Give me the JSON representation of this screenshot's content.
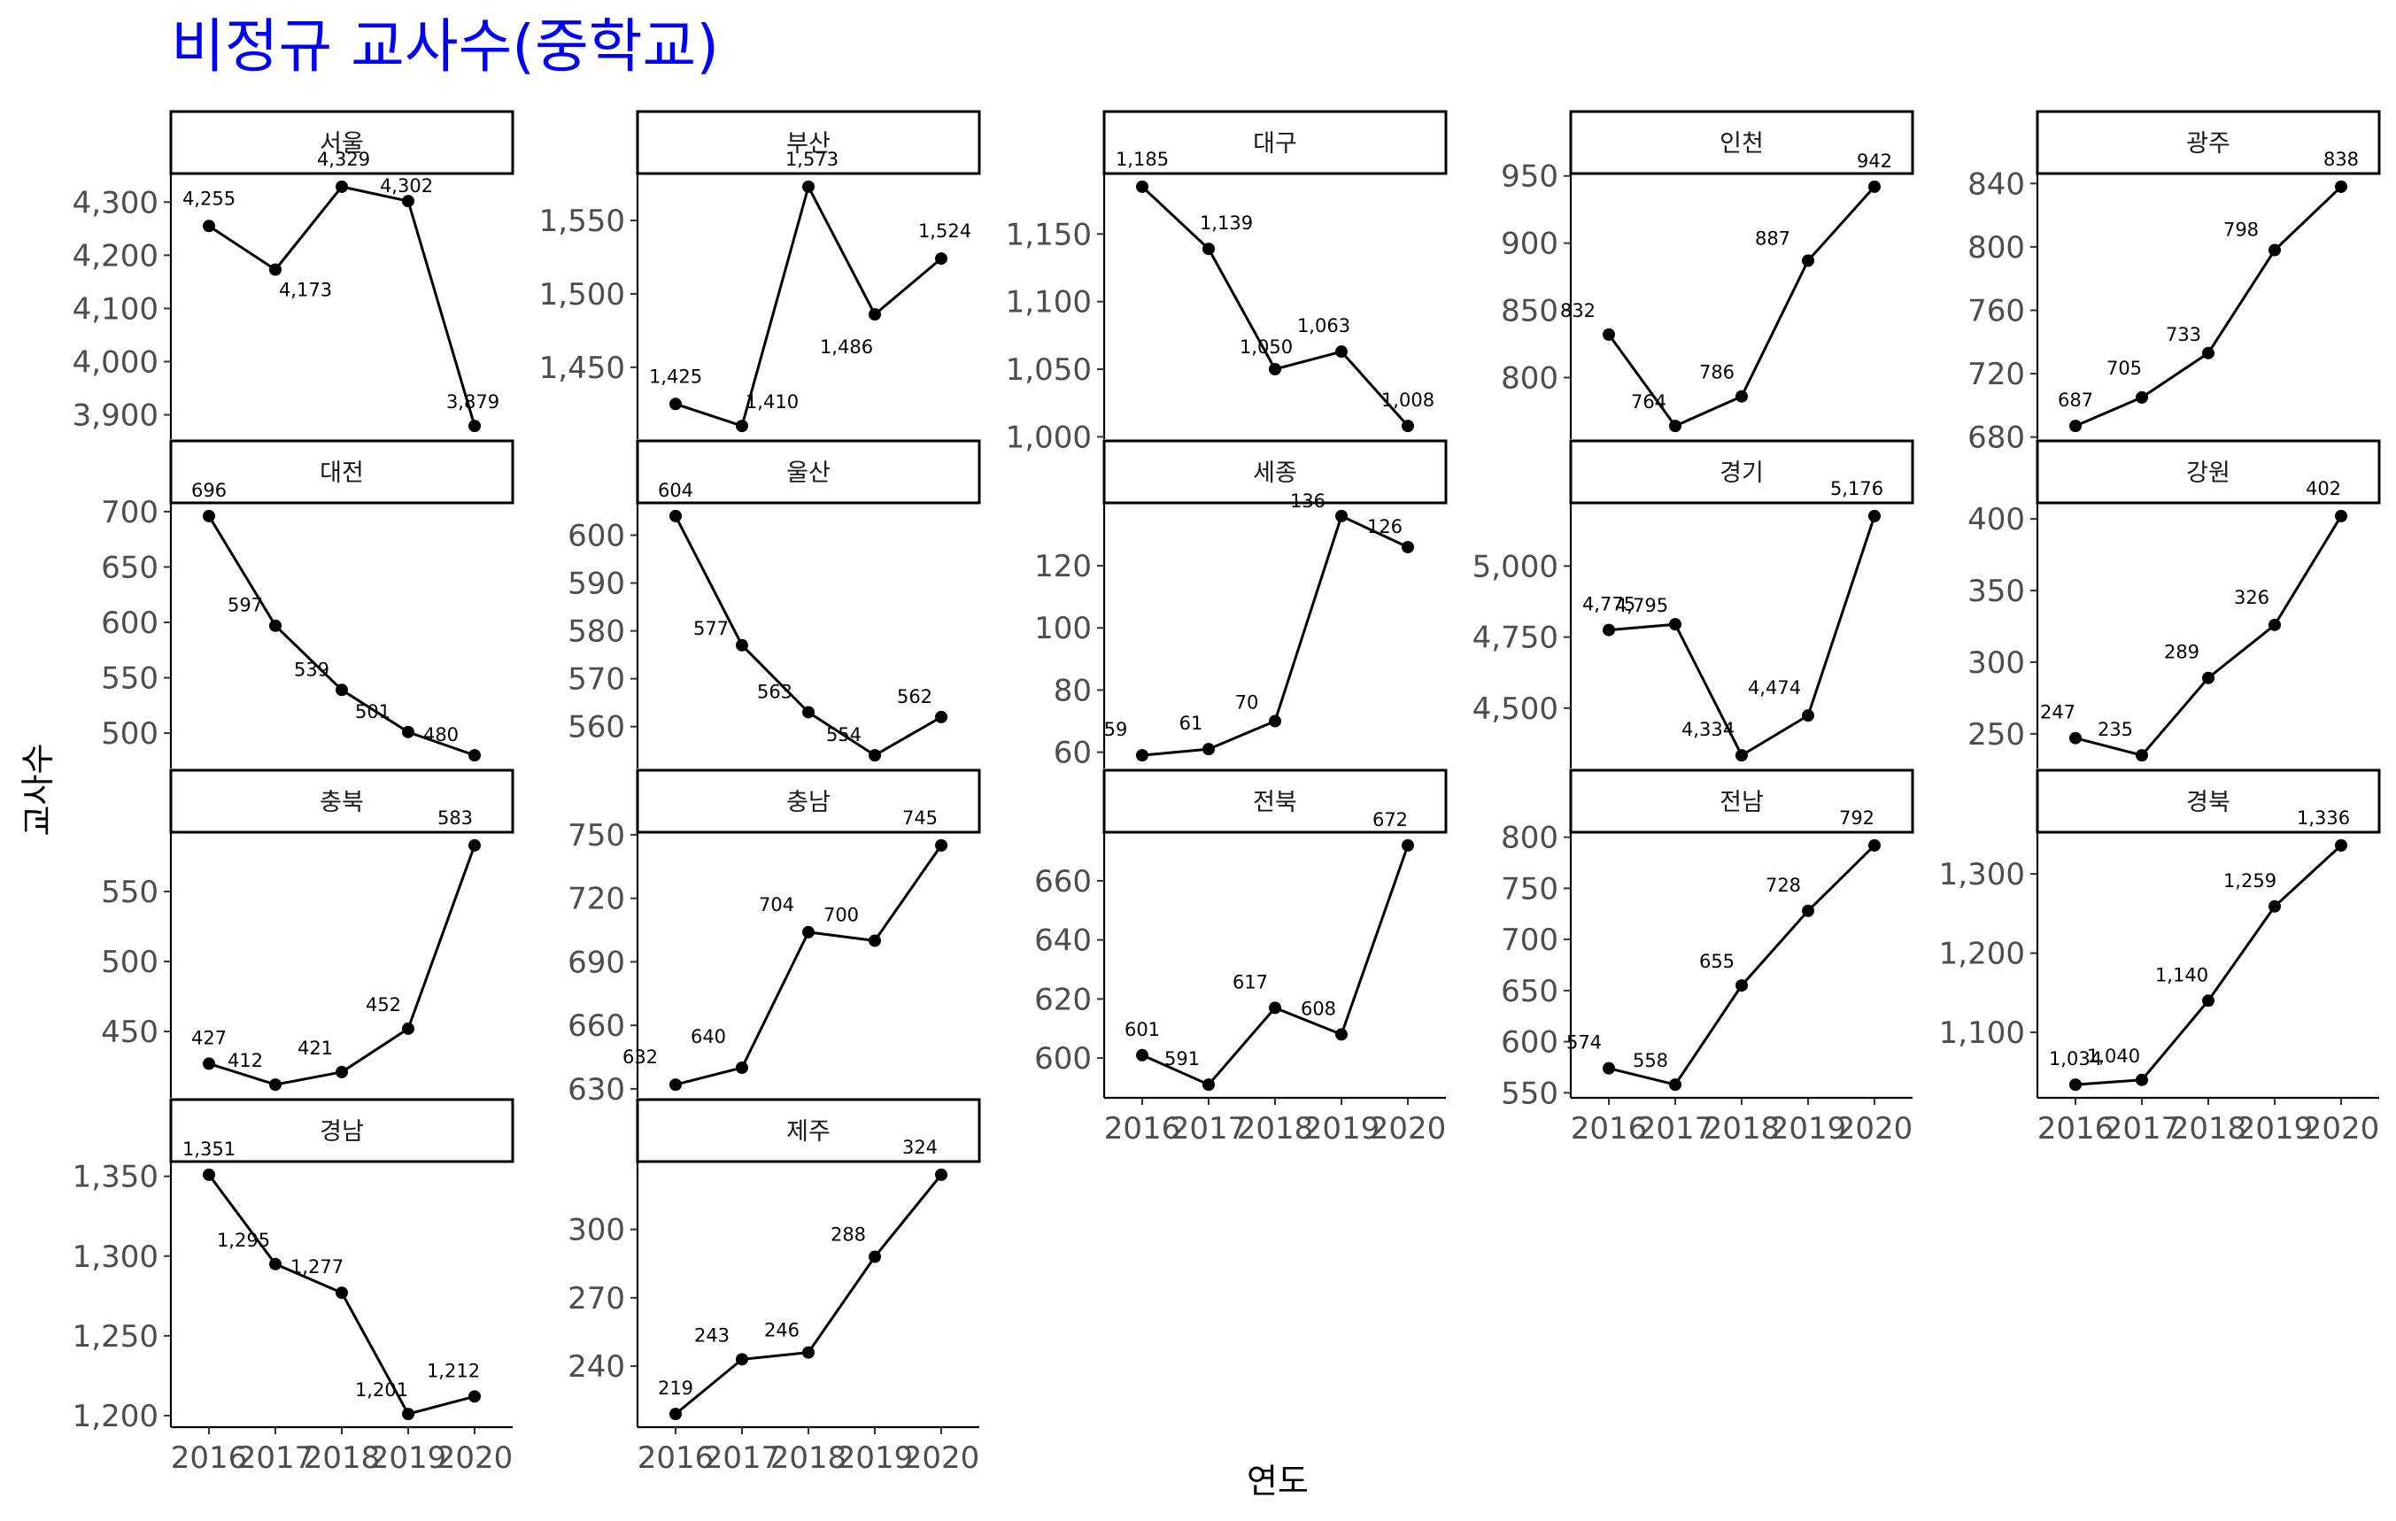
{
  "chart_data": {
    "type": "line",
    "title": "비정규 교사수(중학교)",
    "title_color": "#0000ff",
    "xlabel": "연도",
    "ylabel": "교사수",
    "x": [
      2016,
      2017,
      2018,
      2019,
      2020
    ],
    "facet_layout": "5 columns, free y scales",
    "grid": false,
    "line_color": "#000000",
    "facets": [
      {
        "name": "서울",
        "values": [
          4255,
          4173,
          4329,
          4302,
          3879
        ],
        "labels": [
          "4,255",
          "4,173",
          "4,329",
          "4,302",
          "3,879"
        ],
        "ylim": [
          3879,
          4329
        ],
        "yticks": [
          3900,
          4000,
          4100,
          4200,
          4300
        ],
        "ytick_labels": [
          "3,900",
          "4,000",
          "4,100",
          "4,200",
          "4,300"
        ],
        "show_x_labels": false
      },
      {
        "name": "부산",
        "values": [
          1425,
          1410,
          1573,
          1486,
          1524
        ],
        "labels": [
          "1,425",
          "1,410",
          "1,573",
          "1,486",
          "1,524"
        ],
        "ylim": [
          1410,
          1573
        ],
        "yticks": [
          1450,
          1500,
          1550
        ],
        "ytick_labels": [
          "1,450",
          "1,500",
          "1,550"
        ],
        "show_x_labels": false
      },
      {
        "name": "대구",
        "values": [
          1185,
          1139,
          1050,
          1063,
          1008
        ],
        "labels": [
          "1,185",
          "1,139",
          "1,050",
          "1,063",
          "1,008"
        ],
        "ylim": [
          1008,
          1185
        ],
        "yticks": [
          1000,
          1050,
          1100,
          1150
        ],
        "ytick_labels": [
          "1,000",
          "1,050",
          "1,100",
          "1,150"
        ],
        "show_x_labels": false
      },
      {
        "name": "인천",
        "values": [
          832,
          764,
          786,
          887,
          942
        ],
        "labels": [
          "832",
          "764",
          "786",
          "887",
          "942"
        ],
        "ylim": [
          764,
          942
        ],
        "yticks": [
          800,
          850,
          900,
          950
        ],
        "ytick_labels": [
          "800",
          "850",
          "900",
          "950"
        ],
        "show_x_labels": false
      },
      {
        "name": "광주",
        "values": [
          687,
          705,
          733,
          798,
          838
        ],
        "labels": [
          "687",
          "705",
          "733",
          "798",
          "838"
        ],
        "ylim": [
          687,
          838
        ],
        "yticks": [
          680,
          720,
          760,
          800,
          840
        ],
        "ytick_labels": [
          "680",
          "720",
          "760",
          "800",
          "840"
        ],
        "show_x_labels": false
      },
      {
        "name": "대전",
        "values": [
          696,
          597,
          539,
          501,
          480
        ],
        "labels": [
          "696",
          "597",
          "539",
          "501",
          "480"
        ],
        "ylim": [
          480,
          696
        ],
        "yticks": [
          500,
          550,
          600,
          650,
          700
        ],
        "ytick_labels": [
          "500",
          "550",
          "600",
          "650",
          "700"
        ],
        "show_x_labels": false
      },
      {
        "name": "울산",
        "values": [
          604,
          577,
          563,
          554,
          562
        ],
        "labels": [
          "604",
          "577",
          "563",
          "554",
          "562"
        ],
        "ylim": [
          554,
          604
        ],
        "yticks": [
          560,
          570,
          580,
          590,
          600
        ],
        "ytick_labels": [
          "560",
          "570",
          "580",
          "590",
          "600"
        ],
        "show_x_labels": false
      },
      {
        "name": "세종",
        "values": [
          59,
          61,
          70,
          136,
          126
        ],
        "labels": [
          "59",
          "61",
          "70",
          "136",
          "126"
        ],
        "ylim": [
          59,
          136
        ],
        "yticks": [
          60,
          80,
          100,
          120
        ],
        "ytick_labels": [
          "60",
          "80",
          "100",
          "120"
        ],
        "show_x_labels": false
      },
      {
        "name": "경기",
        "values": [
          4775,
          4795,
          4334,
          4474,
          5176
        ],
        "labels": [
          "4,775",
          "4,795",
          "4,334",
          "4,474",
          "5,176"
        ],
        "ylim": [
          4334,
          5176
        ],
        "yticks": [
          4500,
          4750,
          5000
        ],
        "ytick_labels": [
          "4,500",
          "4,750",
          "5,000"
        ],
        "show_x_labels": false
      },
      {
        "name": "강원",
        "values": [
          247,
          235,
          289,
          326,
          402
        ],
        "labels": [
          "247",
          "235",
          "289",
          "326",
          "402"
        ],
        "ylim": [
          235,
          402
        ],
        "yticks": [
          250,
          300,
          350,
          400
        ],
        "ytick_labels": [
          "250",
          "300",
          "350",
          "400"
        ],
        "show_x_labels": false
      },
      {
        "name": "충북",
        "values": [
          427,
          412,
          421,
          452,
          583
        ],
        "labels": [
          "427",
          "412",
          "421",
          "452",
          "583"
        ],
        "ylim": [
          412,
          583
        ],
        "yticks": [
          450,
          500,
          550
        ],
        "ytick_labels": [
          "450",
          "500",
          "550"
        ],
        "show_x_labels": false
      },
      {
        "name": "충남",
        "values": [
          632,
          640,
          704,
          700,
          745
        ],
        "labels": [
          "632",
          "640",
          "704",
          "700",
          "745"
        ],
        "ylim": [
          632,
          745
        ],
        "yticks": [
          630,
          660,
          690,
          720,
          750
        ],
        "ytick_labels": [
          "630",
          "660",
          "690",
          "720",
          "750"
        ],
        "show_x_labels": false
      },
      {
        "name": "전북",
        "values": [
          601,
          591,
          617,
          608,
          672
        ],
        "labels": [
          "601",
          "591",
          "617",
          "608",
          "672"
        ],
        "ylim": [
          591,
          672
        ],
        "yticks": [
          600,
          620,
          640,
          660
        ],
        "ytick_labels": [
          "600",
          "620",
          "640",
          "660"
        ],
        "show_x_labels": true
      },
      {
        "name": "전남",
        "values": [
          574,
          558,
          655,
          728,
          792
        ],
        "labels": [
          "574",
          "558",
          "655",
          "728",
          "792"
        ],
        "ylim": [
          558,
          792
        ],
        "yticks": [
          550,
          600,
          650,
          700,
          750,
          800
        ],
        "ytick_labels": [
          "550",
          "600",
          "650",
          "700",
          "750",
          "800"
        ],
        "show_x_labels": true
      },
      {
        "name": "경북",
        "values": [
          1034,
          1040,
          1140,
          1259,
          1336
        ],
        "labels": [
          "1,034",
          "1,040",
          "1,140",
          "1,259",
          "1,336"
        ],
        "ylim": [
          1034,
          1336
        ],
        "yticks": [
          1100,
          1200,
          1300
        ],
        "ytick_labels": [
          "1,100",
          "1,200",
          "1,300"
        ],
        "show_x_labels": true
      },
      {
        "name": "경남",
        "values": [
          1351,
          1295,
          1277,
          1201,
          1212
        ],
        "labels": [
          "1,351",
          "1,295",
          "1,277",
          "1,201",
          "1,212"
        ],
        "ylim": [
          1201,
          1351
        ],
        "yticks": [
          1200,
          1250,
          1300,
          1350
        ],
        "ytick_labels": [
          "1,200",
          "1,250",
          "1,300",
          "1,350"
        ],
        "show_x_labels": true
      },
      {
        "name": "제주",
        "values": [
          219,
          243,
          246,
          288,
          324
        ],
        "labels": [
          "219",
          "243",
          "246",
          "288",
          "324"
        ],
        "ylim": [
          219,
          324
        ],
        "yticks": [
          240,
          270,
          300
        ],
        "ytick_labels": [
          "240",
          "270",
          "300"
        ],
        "show_x_labels": true
      }
    ]
  }
}
